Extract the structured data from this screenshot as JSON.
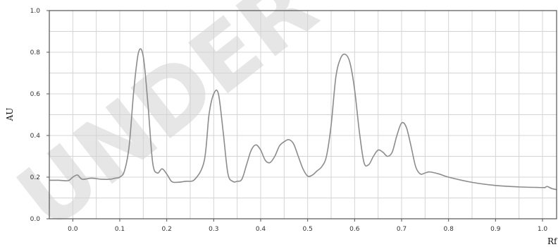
{
  "chart_data": {
    "type": "line",
    "title": "",
    "xlabel": "Rf",
    "ylabel": "AU",
    "xlim": [
      -0.05,
      1.03
    ],
    "ylim": [
      0.0,
      1.0
    ],
    "grid": true,
    "x_ticks": [
      "0.0",
      "0.1",
      "0.2",
      "0.3",
      "0.4",
      "0.5",
      "0.6",
      "0.7",
      "0.8",
      "0.9",
      "1.0"
    ],
    "x_tick_values": [
      0.0,
      0.1,
      0.2,
      0.3,
      0.4,
      0.5,
      0.6,
      0.7,
      0.8,
      0.9,
      1.0
    ],
    "y_ticks": [
      "0.0",
      "0.2",
      "0.4",
      "0.6",
      "0.8",
      "1.0"
    ],
    "y_tick_values": [
      0.0,
      0.2,
      0.4,
      0.6,
      0.8,
      1.0
    ],
    "watermark": "UNDER PE",
    "series": [
      {
        "color": "#8c8c8c",
        "x": [
          -0.05,
          -0.03,
          -0.01,
          0.0,
          0.01,
          0.02,
          0.04,
          0.06,
          0.08,
          0.09,
          0.1,
          0.11,
          0.12,
          0.13,
          0.14,
          0.15,
          0.16,
          0.17,
          0.18,
          0.19,
          0.2,
          0.21,
          0.22,
          0.24,
          0.26,
          0.28,
          0.29,
          0.3,
          0.31,
          0.32,
          0.33,
          0.34,
          0.35,
          0.36,
          0.37,
          0.38,
          0.39,
          0.4,
          0.41,
          0.42,
          0.43,
          0.44,
          0.45,
          0.46,
          0.47,
          0.48,
          0.49,
          0.5,
          0.51,
          0.52,
          0.53,
          0.54,
          0.55,
          0.56,
          0.57,
          0.58,
          0.59,
          0.6,
          0.61,
          0.62,
          0.63,
          0.64,
          0.65,
          0.66,
          0.67,
          0.68,
          0.69,
          0.7,
          0.71,
          0.72,
          0.73,
          0.74,
          0.75,
          0.76,
          0.78,
          0.8,
          0.85,
          0.9,
          0.95,
          1.0,
          1.005,
          1.01,
          1.02,
          1.03
        ],
        "y": [
          0.185,
          0.185,
          0.183,
          0.2,
          0.21,
          0.19,
          0.195,
          0.19,
          0.19,
          0.195,
          0.2,
          0.23,
          0.35,
          0.62,
          0.8,
          0.78,
          0.55,
          0.27,
          0.22,
          0.24,
          0.215,
          0.18,
          0.175,
          0.18,
          0.19,
          0.28,
          0.5,
          0.6,
          0.6,
          0.42,
          0.22,
          0.18,
          0.18,
          0.19,
          0.26,
          0.33,
          0.355,
          0.33,
          0.28,
          0.27,
          0.3,
          0.35,
          0.37,
          0.38,
          0.36,
          0.3,
          0.24,
          0.205,
          0.21,
          0.23,
          0.25,
          0.3,
          0.45,
          0.68,
          0.77,
          0.79,
          0.75,
          0.62,
          0.42,
          0.27,
          0.26,
          0.3,
          0.33,
          0.32,
          0.3,
          0.32,
          0.4,
          0.46,
          0.44,
          0.35,
          0.25,
          0.215,
          0.22,
          0.225,
          0.215,
          0.2,
          0.175,
          0.16,
          0.153,
          0.15,
          0.15,
          0.155,
          0.145,
          0.14
        ]
      }
    ]
  }
}
